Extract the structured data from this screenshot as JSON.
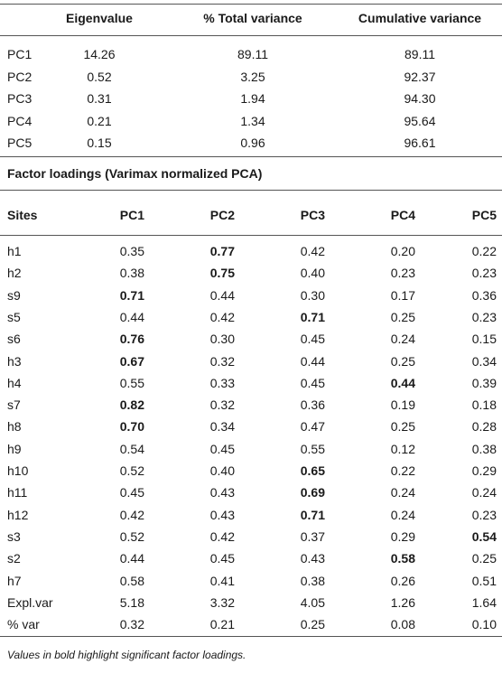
{
  "top_table": {
    "headers": [
      "",
      "Eigenvalue",
      "% Total variance",
      "Cumulative variance"
    ],
    "rows": [
      [
        "PC1",
        "14.26",
        "89.11",
        "89.11"
      ],
      [
        "PC2",
        "0.52",
        "3.25",
        "92.37"
      ],
      [
        "PC3",
        "0.31",
        "1.94",
        "94.30"
      ],
      [
        "PC4",
        "0.21",
        "1.34",
        "95.64"
      ],
      [
        "PC5",
        "0.15",
        "0.96",
        "96.61"
      ]
    ]
  },
  "section_title": "Factor loadings (Varimax normalized PCA)",
  "loadings_table": {
    "headers": [
      "Sites",
      "PC1",
      "PC2",
      "PC3",
      "PC4",
      "PC5"
    ],
    "rows": [
      {
        "cells": [
          "h1",
          "0.35",
          "0.77",
          "0.42",
          "0.20",
          "0.22"
        ],
        "bold": [
          2
        ]
      },
      {
        "cells": [
          "h2",
          "0.38",
          "0.75",
          "0.40",
          "0.23",
          "0.23"
        ],
        "bold": [
          2
        ]
      },
      {
        "cells": [
          "s9",
          "0.71",
          "0.44",
          "0.30",
          "0.17",
          "0.36"
        ],
        "bold": [
          1
        ]
      },
      {
        "cells": [
          "s5",
          "0.44",
          "0.42",
          "0.71",
          "0.25",
          "0.23"
        ],
        "bold": [
          3
        ]
      },
      {
        "cells": [
          "s6",
          "0.76",
          "0.30",
          "0.45",
          "0.24",
          "0.15"
        ],
        "bold": [
          1
        ]
      },
      {
        "cells": [
          "h3",
          "0.67",
          "0.32",
          "0.44",
          "0.25",
          "0.34"
        ],
        "bold": [
          1
        ]
      },
      {
        "cells": [
          "h4",
          "0.55",
          "0.33",
          "0.45",
          "0.44",
          "0.39"
        ],
        "bold": [
          4
        ]
      },
      {
        "cells": [
          "s7",
          "0.82",
          "0.32",
          "0.36",
          "0.19",
          "0.18"
        ],
        "bold": [
          1
        ]
      },
      {
        "cells": [
          "h8",
          "0.70",
          "0.34",
          "0.47",
          "0.25",
          "0.28"
        ],
        "bold": [
          1
        ]
      },
      {
        "cells": [
          "h9",
          "0.54",
          "0.45",
          "0.55",
          "0.12",
          "0.38"
        ],
        "bold": []
      },
      {
        "cells": [
          "h10",
          "0.52",
          "0.40",
          "0.65",
          "0.22",
          "0.29"
        ],
        "bold": [
          3
        ]
      },
      {
        "cells": [
          "h11",
          "0.45",
          "0.43",
          "0.69",
          "0.24",
          "0.24"
        ],
        "bold": [
          3
        ]
      },
      {
        "cells": [
          "h12",
          "0.42",
          "0.43",
          "0.71",
          "0.24",
          "0.23"
        ],
        "bold": [
          3
        ]
      },
      {
        "cells": [
          "s3",
          "0.52",
          "0.42",
          "0.37",
          "0.29",
          "0.54"
        ],
        "bold": [
          5
        ]
      },
      {
        "cells": [
          "s2",
          "0.44",
          "0.45",
          "0.43",
          "0.58",
          "0.25"
        ],
        "bold": [
          4
        ]
      },
      {
        "cells": [
          "h7",
          "0.58",
          "0.41",
          "0.38",
          "0.26",
          "0.51"
        ],
        "bold": []
      },
      {
        "cells": [
          "Expl.var",
          "5.18",
          "3.32",
          "4.05",
          "1.26",
          "1.64"
        ],
        "bold": []
      },
      {
        "cells": [
          "% var",
          "0.32",
          "0.21",
          "0.25",
          "0.08",
          "0.10"
        ],
        "bold": []
      }
    ]
  },
  "footnote": "Values in bold highlight significant factor loadings."
}
